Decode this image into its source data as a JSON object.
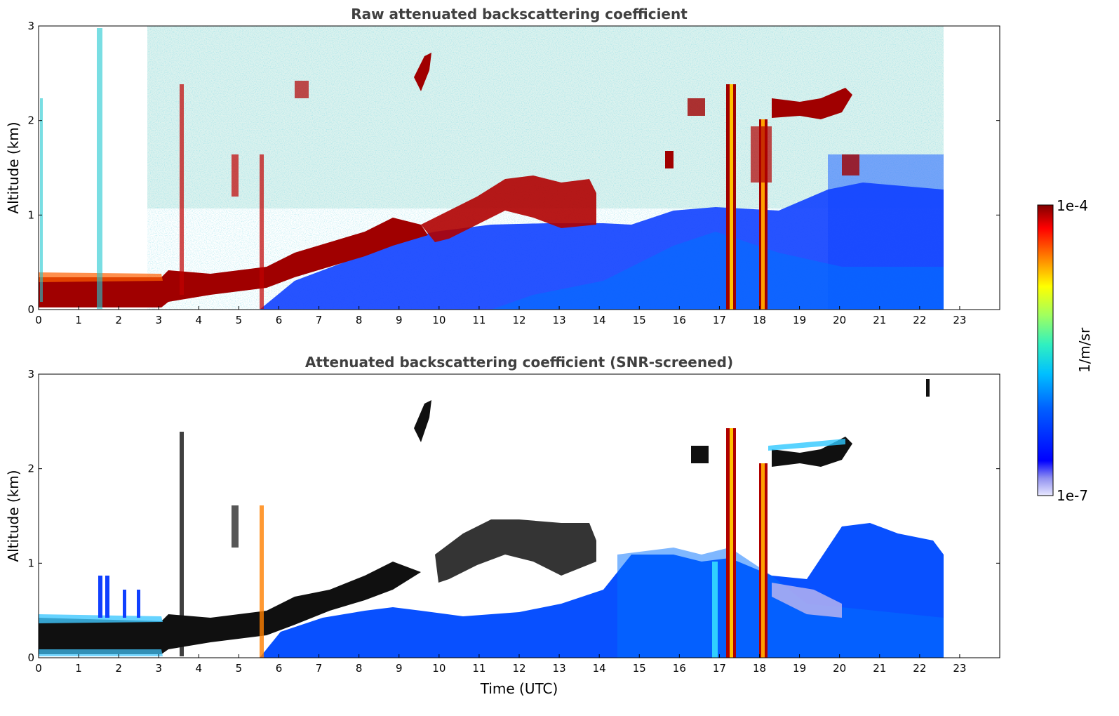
{
  "chart_data": [
    {
      "type": "heatmap",
      "title": "Raw attenuated backscattering coefficient",
      "xlabel": "",
      "ylabel": "Altitude (km)",
      "xlim": [
        0,
        24
      ],
      "ylim": [
        0,
        3
      ],
      "xticks": [
        "0",
        "1",
        "2",
        "3",
        "4",
        "5",
        "6",
        "7",
        "8",
        "9",
        "10",
        "11",
        "12",
        "13",
        "14",
        "15",
        "16",
        "17",
        "18",
        "19",
        "20",
        "21",
        "22",
        "23"
      ],
      "yticks": [
        "0",
        "1",
        "2",
        "3"
      ],
      "data_end_time": 22.6,
      "layers": [
        {
          "name": "",
          "t_start": 0,
          "t_end": 2.9,
          "alt_km": 0.18,
          "thickness_km": 0.2
        },
        {
          "name": "",
          "t_start": 3.5,
          "t_end": 8.0,
          "alt_km": 0.3,
          "thickness_km": 0.25
        },
        {
          "name": "",
          "t_start": 6.5,
          "t_end": 9.5,
          "alt_km": 0.6,
          "thickness_km": 0.4
        },
        {
          "name": "",
          "t_start": 9.5,
          "t_end": 14.0,
          "alt_km": 1.15,
          "thickness_km": 0.35
        },
        {
          "name": "",
          "t_start": 18.3,
          "t_end": 20.3,
          "alt_km": 2.1,
          "thickness_km": 0.15
        }
      ],
      "grid": false
    },
    {
      "type": "heatmap",
      "title": "Attenuated backscattering coefficient (SNR-screened)",
      "xlabel": "Time (UTC)",
      "ylabel": "Altitude (km)",
      "xlim": [
        0,
        24
      ],
      "ylim": [
        0,
        3
      ],
      "xticks": [
        "0",
        "1",
        "2",
        "3",
        "4",
        "5",
        "6",
        "7",
        "8",
        "9",
        "10",
        "11",
        "12",
        "13",
        "14",
        "15",
        "16",
        "17",
        "18",
        "19",
        "20",
        "21",
        "22",
        "23"
      ],
      "yticks": [
        "0",
        "1",
        "2",
        "3"
      ],
      "data_end_time": 22.6,
      "grid": false
    }
  ],
  "colorbar": {
    "label": "1/m/sr",
    "max_label": "1e-4",
    "min_label": "1e-7",
    "colormap": "jet"
  }
}
